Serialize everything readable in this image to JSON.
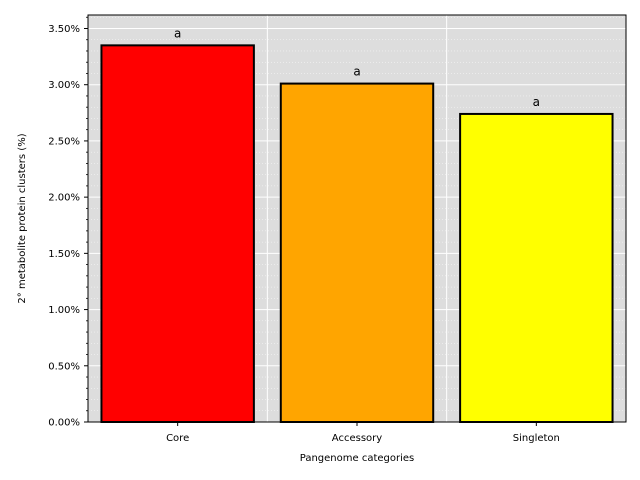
{
  "chart_data": {
    "type": "bar",
    "title": "",
    "xlabel": "Pangenome categories",
    "ylabel": "2° metabolite protein clusters (%)",
    "categories": [
      "Core",
      "Accessory",
      "Singleton"
    ],
    "values": [
      3.35,
      3.01,
      2.74
    ],
    "value_unit": "%",
    "colors": [
      "#ff0000",
      "#ffa500",
      "#ffff00"
    ],
    "bar_edge_color": "#000000",
    "significance_labels": [
      "a",
      "a",
      "a"
    ],
    "ylim": [
      0,
      3.62
    ],
    "yticks": [
      0,
      0.5,
      1.0,
      1.5,
      2.0,
      2.5,
      3.0,
      3.5
    ],
    "ytick_labels": [
      "0.00%",
      "0.50%",
      "1.00%",
      "1.50%",
      "2.00%",
      "2.50%",
      "3.00%",
      "3.50%"
    ],
    "grid": true,
    "minor_grid": true,
    "background_color": "#dddddd",
    "grid_color": "#ffffff"
  }
}
